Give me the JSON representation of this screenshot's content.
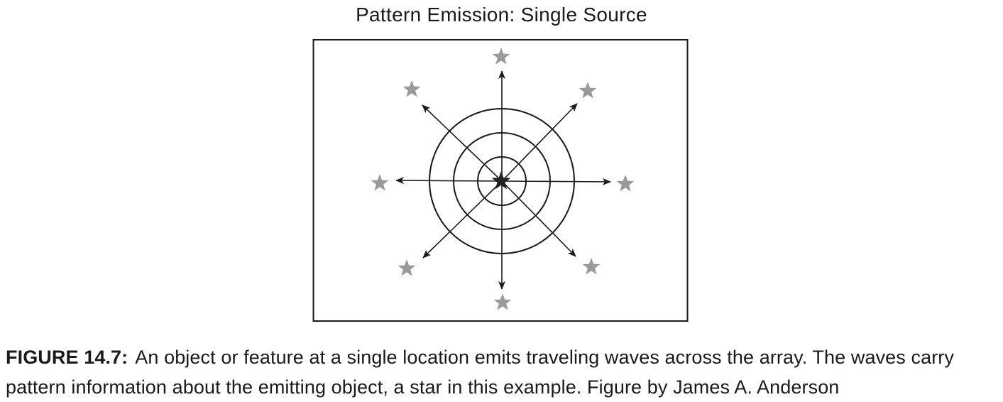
{
  "figure": {
    "title": "Pattern Emission: Single Source",
    "caption_label": "FIGURE 14.7:",
    "caption_text": "An object or feature at a single location emits traveling waves across the array. The waves carry pattern information about the emitting object, a star in this example. Figure by James A. Anderson"
  },
  "diagram": {
    "source": "star",
    "ring_count": 3,
    "arrow_count": 8,
    "arrow_directions": [
      "N",
      "NE",
      "E",
      "SE",
      "S",
      "SW",
      "W",
      "NW"
    ],
    "colors": {
      "source_star": "#222222",
      "emitted_stars": "#9a9a9a",
      "lines": "#1a1a1a"
    }
  }
}
